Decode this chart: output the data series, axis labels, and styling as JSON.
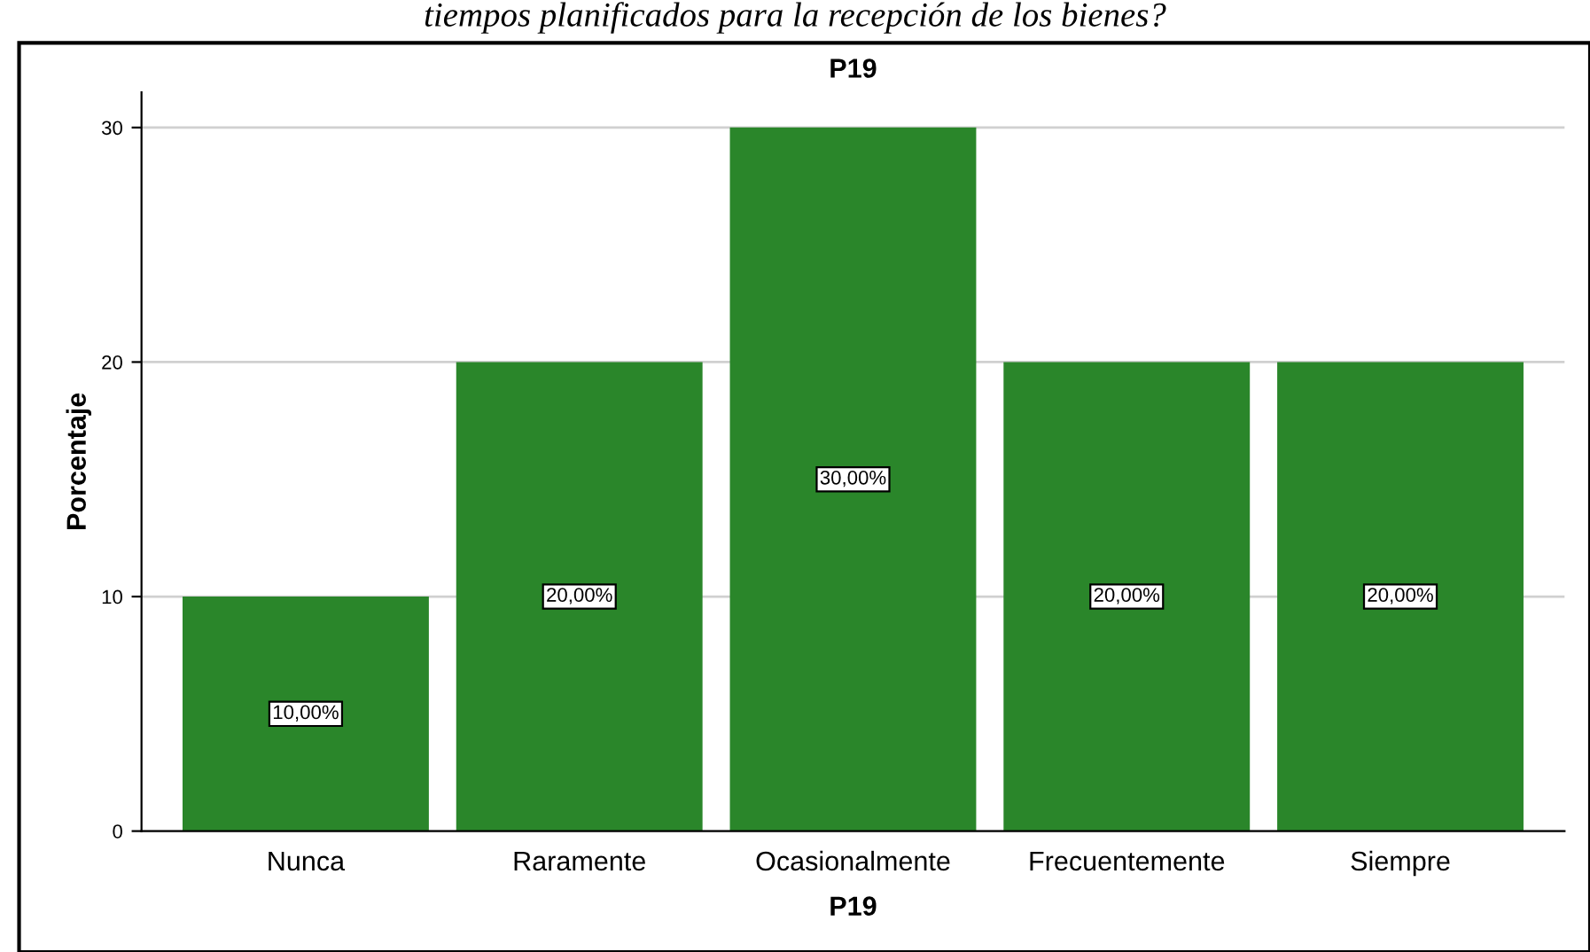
{
  "chart_data": {
    "type": "bar",
    "title": "P19",
    "xlabel": "P19",
    "ylabel": "Porcentaje",
    "annotations": [
      "tiempos planificados para la recepción de los bienes?"
    ],
    "categories": [
      "Nunca",
      "Raramente",
      "Ocasionalmente",
      "Frecuentemente",
      "Siempre"
    ],
    "values": [
      10,
      20,
      30,
      20,
      20
    ],
    "value_labels": [
      "10,00%",
      "20,00%",
      "30,00%",
      "20,00%",
      "20,00%"
    ],
    "color": "#2a862a",
    "ylim": [
      0,
      31.5
    ],
    "yticks": [
      0,
      10,
      20,
      30
    ],
    "grid": "y"
  }
}
